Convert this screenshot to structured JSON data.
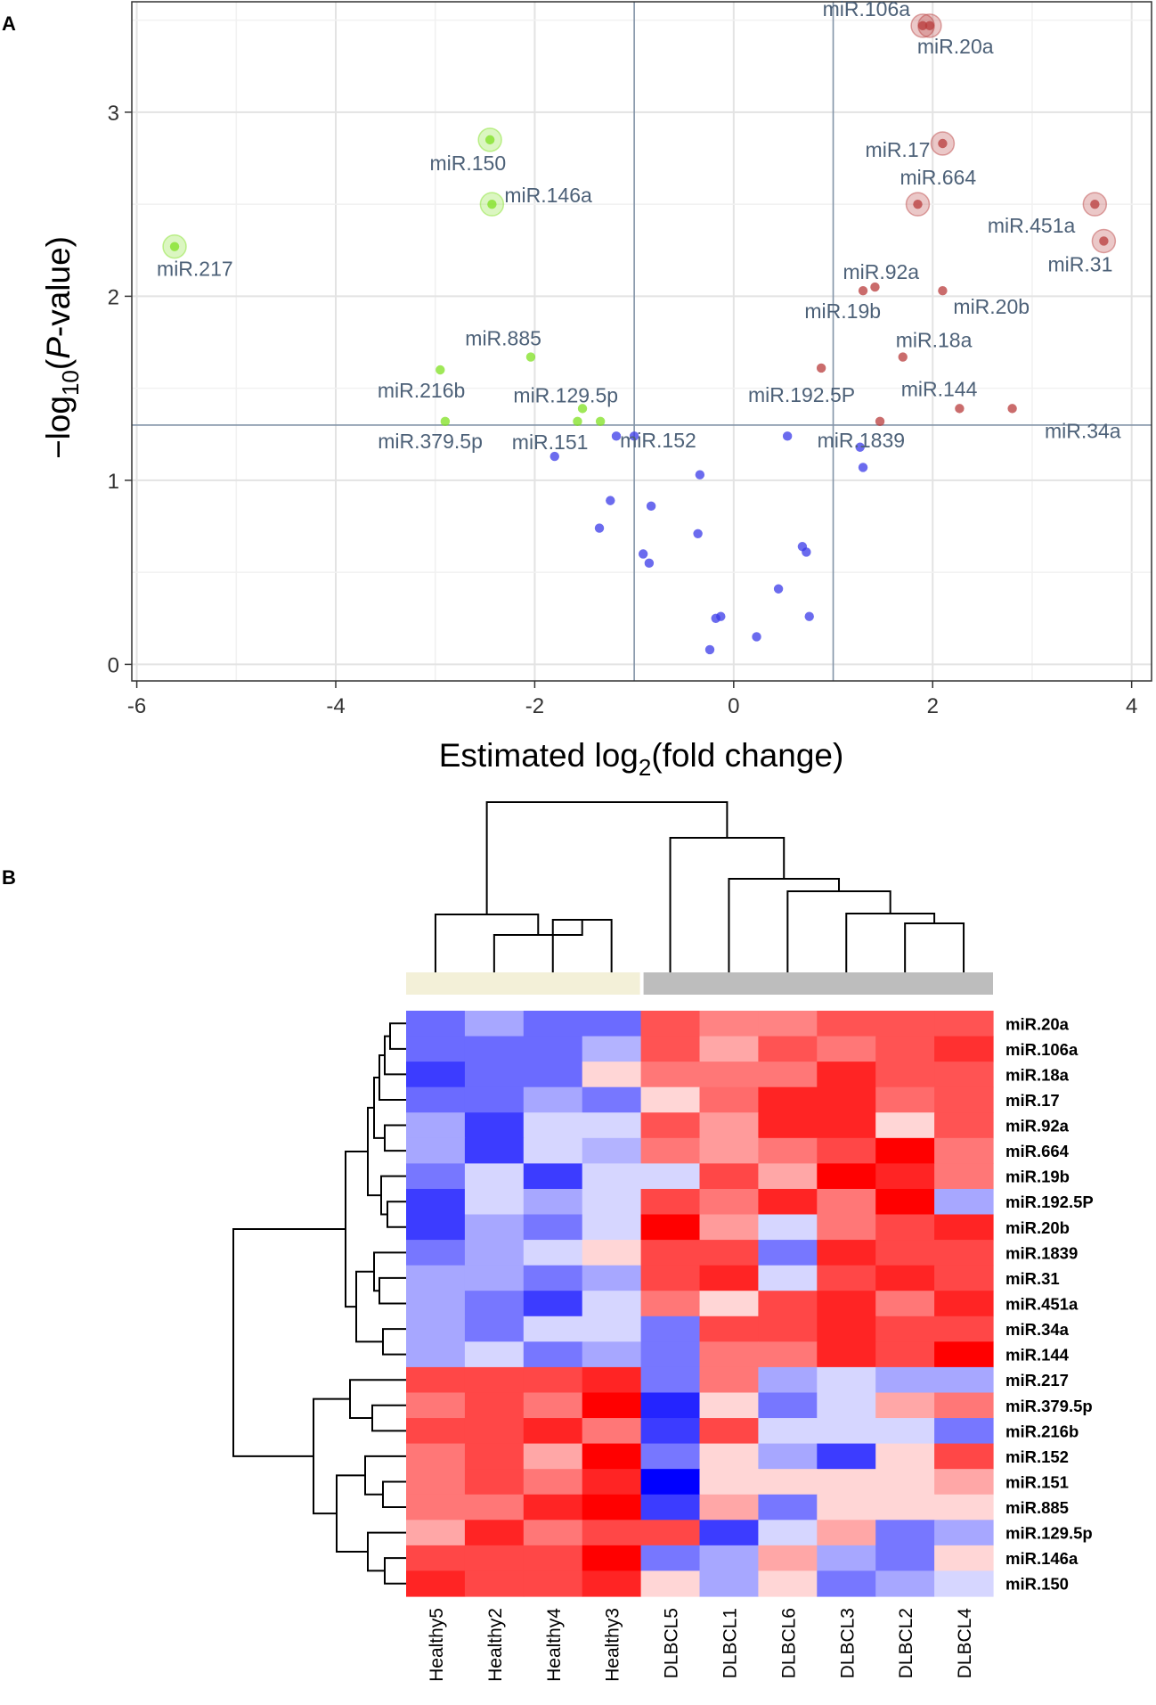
{
  "chart_data": [
    {
      "type": "scatter",
      "panel_label": "A",
      "title": "",
      "xlabel": "Estimated log2(fold change)",
      "ylabel": "-log10(P-value)",
      "xlabel_parts": {
        "pre": "Estimated log",
        "sub": "2",
        "post": "(fold change)"
      },
      "ylabel_parts": {
        "pre": "−log",
        "sub": "10",
        "mid": "(",
        "italic": "P",
        "post": "-value)"
      },
      "xlim": [
        -6.05,
        4.2
      ],
      "ylim": [
        -0.09,
        3.6
      ],
      "xticks": [
        -6,
        -4,
        -2,
        0,
        2,
        4
      ],
      "yticks": [
        0,
        1,
        2,
        3
      ],
      "xtick_labels": [
        "-6",
        "-4",
        "-2",
        "0",
        "2",
        "4"
      ],
      "ytick_labels": [
        "0",
        "1",
        "2",
        "3"
      ],
      "grid": true,
      "vlines": [
        -1,
        1
      ],
      "hline": 1.3,
      "colors": {
        "down": "#7fe020",
        "up": "#b83b3b",
        "ns": "#3a3ae8",
        "label": "#4d6178",
        "ref": "#8394a8"
      },
      "points": [
        {
          "name": "miR.106a",
          "x": 1.9,
          "y": 3.47,
          "group": "up",
          "halo": true
        },
        {
          "name": "miR.20a",
          "x": 1.97,
          "y": 3.47,
          "group": "up",
          "halo": true
        },
        {
          "name": "miR.17",
          "x": 2.1,
          "y": 2.83,
          "group": "up",
          "halo": true
        },
        {
          "name": "miR.664",
          "x": 1.85,
          "y": 2.5,
          "group": "up",
          "halo": true
        },
        {
          "name": "miR.451a",
          "x": 3.63,
          "y": 2.5,
          "group": "up",
          "halo": true
        },
        {
          "name": "miR.31",
          "x": 3.72,
          "y": 2.3,
          "group": "up",
          "halo": true
        },
        {
          "name": "miR.92a",
          "x": 1.42,
          "y": 2.05,
          "group": "up",
          "halo": false
        },
        {
          "name": "miR.19b",
          "x": 1.3,
          "y": 2.03,
          "group": "up",
          "halo": false
        },
        {
          "name": "miR.20b",
          "x": 2.1,
          "y": 2.03,
          "group": "up",
          "halo": false
        },
        {
          "name": "miR.18a",
          "x": 1.7,
          "y": 1.67,
          "group": "up",
          "halo": false
        },
        {
          "name": "miR.192.5P",
          "x": 0.88,
          "y": 1.61,
          "group": "up",
          "halo": false
        },
        {
          "name": "miR.144",
          "x": 2.27,
          "y": 1.39,
          "group": "up",
          "halo": false
        },
        {
          "name": "miR.34a",
          "x": 2.8,
          "y": 1.39,
          "group": "up",
          "halo": false
        },
        {
          "name": "miR.1839",
          "x": 1.47,
          "y": 1.32,
          "group": "up",
          "halo": false
        },
        {
          "name": "miR.150",
          "x": -2.45,
          "y": 2.85,
          "group": "down",
          "halo": true
        },
        {
          "name": "miR.146a",
          "x": -2.43,
          "y": 2.5,
          "group": "down",
          "halo": true
        },
        {
          "name": "miR.217",
          "x": -5.62,
          "y": 2.27,
          "group": "down",
          "halo": true
        },
        {
          "name": "miR.885",
          "x": -2.04,
          "y": 1.67,
          "group": "down",
          "halo": false
        },
        {
          "name": "miR.216b",
          "x": -2.95,
          "y": 1.6,
          "group": "down",
          "halo": false
        },
        {
          "name": "miR.129.5p",
          "x": -1.52,
          "y": 1.39,
          "group": "down",
          "halo": false
        },
        {
          "name": "miR.379.5p",
          "x": -2.9,
          "y": 1.32,
          "group": "down",
          "halo": false
        },
        {
          "name": "miR.151",
          "x": -1.57,
          "y": 1.32,
          "group": "down",
          "halo": false
        },
        {
          "name": "miR.152",
          "x": -1.34,
          "y": 1.32,
          "group": "down",
          "halo": false
        },
        {
          "name": "",
          "x": -1.0,
          "y": 1.24,
          "group": "ns",
          "halo": false
        },
        {
          "name": "",
          "x": -1.18,
          "y": 1.24,
          "group": "ns",
          "halo": false
        },
        {
          "name": "",
          "x": -1.8,
          "y": 1.13,
          "group": "ns",
          "halo": false
        },
        {
          "name": "",
          "x": 0.54,
          "y": 1.24,
          "group": "ns",
          "halo": false
        },
        {
          "name": "",
          "x": 1.27,
          "y": 1.18,
          "group": "ns",
          "halo": false
        },
        {
          "name": "",
          "x": 1.3,
          "y": 1.07,
          "group": "ns",
          "halo": false
        },
        {
          "name": "",
          "x": -0.34,
          "y": 1.03,
          "group": "ns",
          "halo": false
        },
        {
          "name": "",
          "x": -1.24,
          "y": 0.89,
          "group": "ns",
          "halo": false
        },
        {
          "name": "",
          "x": -0.83,
          "y": 0.86,
          "group": "ns",
          "halo": false
        },
        {
          "name": "",
          "x": -1.35,
          "y": 0.74,
          "group": "ns",
          "halo": false
        },
        {
          "name": "",
          "x": -0.36,
          "y": 0.71,
          "group": "ns",
          "halo": false
        },
        {
          "name": "",
          "x": -0.91,
          "y": 0.6,
          "group": "ns",
          "halo": false
        },
        {
          "name": "",
          "x": -0.85,
          "y": 0.55,
          "group": "ns",
          "halo": false
        },
        {
          "name": "",
          "x": 0.69,
          "y": 0.64,
          "group": "ns",
          "halo": false
        },
        {
          "name": "",
          "x": 0.73,
          "y": 0.61,
          "group": "ns",
          "halo": false
        },
        {
          "name": "",
          "x": 0.45,
          "y": 0.41,
          "group": "ns",
          "halo": false
        },
        {
          "name": "",
          "x": -0.18,
          "y": 0.25,
          "group": "ns",
          "halo": false
        },
        {
          "name": "",
          "x": -0.13,
          "y": 0.26,
          "group": "ns",
          "halo": false
        },
        {
          "name": "",
          "x": 0.76,
          "y": 0.26,
          "group": "ns",
          "halo": false
        },
        {
          "name": "",
          "x": 0.23,
          "y": 0.15,
          "group": "ns",
          "halo": false
        },
        {
          "name": "",
          "x": -0.24,
          "y": 0.08,
          "group": "ns",
          "halo": false
        }
      ]
    },
    {
      "type": "heatmap",
      "panel_label": "B",
      "title": "",
      "columns": [
        "Healthy5",
        "Healthy2",
        "Healthy4",
        "Healthy3",
        "DLBCL5",
        "DLBCL1",
        "DLBCL6",
        "DLBCL3",
        "DLBCL2",
        "DLBCL4"
      ],
      "groups": [
        {
          "name": "Healthy",
          "count": 4,
          "color": "#f3f0d8"
        },
        {
          "name": "DLBCL",
          "count": 6,
          "color": "#bdbdbd"
        }
      ],
      "rows": [
        "miR.20a",
        "miR.106a",
        "miR.18a",
        "miR.17",
        "miR.92a",
        "miR.664",
        "miR.19b",
        "miR.192.5P",
        "miR.20b",
        "miR.1839",
        "miR.31",
        "miR.451a",
        "miR.34a",
        "miR.144",
        "miR.217",
        "miR.379.5p",
        "miR.216b",
        "miR.152",
        "miR.151",
        "miR.885",
        "miR.129.5p",
        "miR.146a",
        "miR.150"
      ],
      "value_scale": "z-score (-1 blue to +1 red)",
      "values": [
        [
          -0.55,
          -0.3,
          -0.55,
          -0.55,
          0.65,
          0.45,
          0.45,
          0.65,
          0.65,
          0.65
        ],
        [
          -0.55,
          -0.55,
          -0.55,
          -0.25,
          0.65,
          0.3,
          0.65,
          0.5,
          0.65,
          0.8
        ],
        [
          -0.75,
          -0.55,
          -0.55,
          0.1,
          0.5,
          0.5,
          0.5,
          0.85,
          0.65,
          0.65
        ],
        [
          -0.55,
          -0.55,
          -0.3,
          -0.5,
          0.1,
          0.55,
          0.85,
          0.85,
          0.55,
          0.65
        ],
        [
          -0.3,
          -0.75,
          -0.1,
          -0.1,
          0.65,
          0.35,
          0.85,
          0.85,
          0.1,
          0.65
        ],
        [
          -0.3,
          -0.75,
          -0.1,
          -0.25,
          0.5,
          0.35,
          0.5,
          0.7,
          1.0,
          0.5
        ],
        [
          -0.5,
          -0.1,
          -0.75,
          -0.1,
          -0.1,
          0.7,
          0.3,
          1.0,
          0.85,
          0.5
        ],
        [
          -0.75,
          -0.1,
          -0.3,
          -0.1,
          0.7,
          0.5,
          0.85,
          0.5,
          1.0,
          -0.3
        ],
        [
          -0.75,
          -0.3,
          -0.5,
          -0.1,
          1.0,
          0.35,
          -0.1,
          0.5,
          0.7,
          0.85
        ],
        [
          -0.5,
          -0.3,
          -0.1,
          0.1,
          0.7,
          0.7,
          -0.5,
          0.85,
          0.7,
          0.7
        ],
        [
          -0.3,
          -0.3,
          -0.5,
          -0.3,
          0.7,
          0.85,
          -0.1,
          0.7,
          0.85,
          0.7
        ],
        [
          -0.3,
          -0.5,
          -0.75,
          -0.1,
          0.5,
          0.1,
          0.7,
          0.85,
          0.5,
          0.85
        ],
        [
          -0.3,
          -0.5,
          -0.1,
          -0.1,
          -0.5,
          0.7,
          0.7,
          0.85,
          0.7,
          0.7
        ],
        [
          -0.3,
          -0.1,
          -0.5,
          -0.3,
          -0.5,
          0.5,
          0.5,
          0.85,
          0.7,
          1.0
        ],
        [
          0.7,
          0.7,
          0.7,
          0.85,
          -0.5,
          0.5,
          -0.3,
          -0.1,
          -0.3,
          -0.3
        ],
        [
          0.5,
          0.7,
          0.5,
          1.0,
          -0.85,
          0.1,
          -0.5,
          -0.1,
          0.3,
          0.5
        ],
        [
          0.7,
          0.7,
          0.85,
          0.5,
          -0.75,
          0.7,
          -0.1,
          -0.1,
          -0.1,
          -0.5
        ],
        [
          0.5,
          0.7,
          0.3,
          1.0,
          -0.5,
          0.1,
          -0.3,
          -0.75,
          0.1,
          0.7
        ],
        [
          0.5,
          0.7,
          0.5,
          0.85,
          -1.0,
          0.1,
          0.1,
          0.1,
          0.1,
          0.3
        ],
        [
          0.5,
          0.5,
          0.85,
          1.0,
          -0.75,
          0.3,
          -0.5,
          0.1,
          0.1,
          0.1
        ],
        [
          0.3,
          0.85,
          0.5,
          0.7,
          0.7,
          -0.75,
          -0.1,
          0.3,
          -0.5,
          -0.3
        ],
        [
          0.7,
          0.7,
          0.7,
          1.0,
          -0.5,
          -0.3,
          0.3,
          -0.3,
          -0.5,
          0.1
        ],
        [
          0.85,
          0.7,
          0.7,
          0.85,
          0.1,
          -0.3,
          0.1,
          -0.5,
          -0.3,
          -0.1
        ]
      ]
    }
  ]
}
